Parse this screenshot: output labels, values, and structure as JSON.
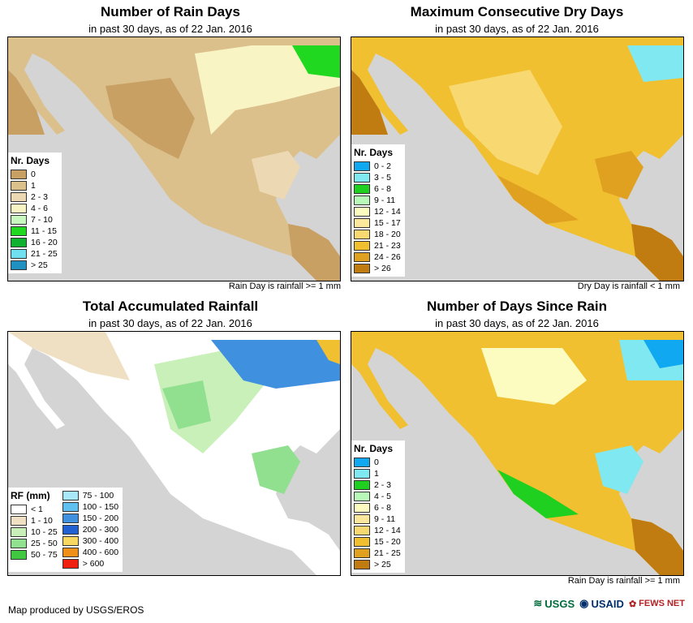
{
  "panels": [
    {
      "title": "Number of Rain Days",
      "subtitle": "in past 30 days, as of 22 Jan. 2016",
      "footnote": "Rain Day is rainfall >= 1 mm",
      "legend_title": "Nr. Days",
      "legend": [
        {
          "label": "0",
          "color": "#c8a064"
        },
        {
          "label": "1",
          "color": "#dcc08c"
        },
        {
          "label": "2 - 3",
          "color": "#ecd9b4"
        },
        {
          "label": "4 - 6",
          "color": "#f8f4c4"
        },
        {
          "label": "7 - 10",
          "color": "#c8f8c0"
        },
        {
          "label": "11 - 15",
          "color": "#20d820"
        },
        {
          "label": "16 - 20",
          "color": "#10b030"
        },
        {
          "label": "21 - 25",
          "color": "#70e0f0"
        },
        {
          "label": "> 25",
          "color": "#2090c0"
        }
      ]
    },
    {
      "title": "Maximum Consecutive Dry Days",
      "subtitle": "in past 30 days, as of 22 Jan. 2016",
      "footnote": "Dry Day is rainfall < 1 mm",
      "legend_title": "Nr. Days",
      "legend": [
        {
          "label": "0 - 2",
          "color": "#10a8f0"
        },
        {
          "label": "3 - 5",
          "color": "#80e8f0"
        },
        {
          "label": "6 - 8",
          "color": "#20d020"
        },
        {
          "label": "9 - 11",
          "color": "#b8f8b8"
        },
        {
          "label": "12 - 14",
          "color": "#fcfcc0"
        },
        {
          "label": "15 - 17",
          "color": "#fce89c"
        },
        {
          "label": "18 - 20",
          "color": "#f8d870"
        },
        {
          "label": "21 - 23",
          "color": "#f0c030"
        },
        {
          "label": "24 - 26",
          "color": "#e0a020"
        },
        {
          "label": "> 26",
          "color": "#c07c10"
        }
      ]
    },
    {
      "title": "Total Accumulated Rainfall",
      "subtitle": "in past 30 days, as of 22 Jan. 2016",
      "footnote": "",
      "legend_title": "RF (mm)",
      "legend": [
        {
          "label": "< 1",
          "color": "#ffffff"
        },
        {
          "label": "1 - 10",
          "color": "#efe0c4"
        },
        {
          "label": "10 - 25",
          "color": "#c8f0b8"
        },
        {
          "label": "25 - 50",
          "color": "#90e090"
        },
        {
          "label": "50 - 75",
          "color": "#40c840"
        }
      ],
      "legend2": [
        {
          "label": "75 - 100",
          "color": "#a8e8f8"
        },
        {
          "label": "100 - 150",
          "color": "#60c0f0"
        },
        {
          "label": "150 - 200",
          "color": "#4090e0"
        },
        {
          "label": "200 - 300",
          "color": "#2060d0"
        },
        {
          "label": "300 - 400",
          "color": "#f8d860"
        },
        {
          "label": "400 - 600",
          "color": "#f09018"
        },
        {
          "label": "> 600",
          "color": "#f02010"
        }
      ]
    },
    {
      "title": "Number of Days Since Rain",
      "subtitle": "in past 30 days, as of 22 Jan. 2016",
      "footnote": "Rain Day is rainfall >= 1 mm",
      "legend_title": "Nr. Days",
      "legend": [
        {
          "label": "0",
          "color": "#10a8f0"
        },
        {
          "label": "1",
          "color": "#80e8f0"
        },
        {
          "label": "2 - 3",
          "color": "#20d020"
        },
        {
          "label": "4 - 5",
          "color": "#b8f8b8"
        },
        {
          "label": "6 - 8",
          "color": "#fcfcc0"
        },
        {
          "label": "9 - 11",
          "color": "#fce89c"
        },
        {
          "label": "12 - 14",
          "color": "#f8d870"
        },
        {
          "label": "15 - 20",
          "color": "#f0c030"
        },
        {
          "label": "21 - 25",
          "color": "#e0a020"
        },
        {
          "label": "> 25",
          "color": "#c07c10"
        }
      ]
    }
  ],
  "credit": "Map produced by USGS/EROS",
  "logos": [
    "USGS",
    "USAID",
    "FEWS NET"
  ],
  "colors": {
    "ocean": "#d4d4d4",
    "border": "#000000"
  }
}
